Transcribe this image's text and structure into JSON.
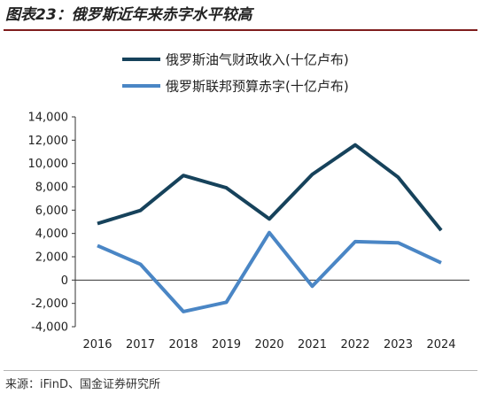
{
  "header": {
    "title": "图表23：俄罗斯近年来赤字水平较高"
  },
  "source": {
    "text": "来源：iFinD、国金证券研究所"
  },
  "chart_data": {
    "type": "line",
    "title": "",
    "xlabel": "",
    "ylabel": "",
    "x": [
      "2016",
      "2017",
      "2018",
      "2019",
      "2020",
      "2021",
      "2022",
      "2023",
      "2024"
    ],
    "ylim": [
      -4000,
      14000
    ],
    "yticks": [
      -4000,
      -2000,
      0,
      2000,
      4000,
      6000,
      8000,
      10000,
      12000,
      14000
    ],
    "ytick_labels": [
      "-4,000",
      "-2,000",
      "0",
      "2,000",
      "4,000",
      "6,000",
      "8,000",
      "10,000",
      "12,000",
      "14,000"
    ],
    "grid": false,
    "legend_position": "top-right",
    "series": [
      {
        "name": "俄罗斯油气财政收入(十亿卢布)",
        "color": "#16425b",
        "values": [
          4850,
          5970,
          8970,
          7920,
          5240,
          9060,
          11590,
          8820,
          4270
        ]
      },
      {
        "name": "俄罗斯联邦预算赤字(十亿卢布)",
        "color": "#4a86c5",
        "values": [
          2960,
          1360,
          -2700,
          -1900,
          4070,
          -530,
          3300,
          3200,
          1480
        ]
      }
    ]
  }
}
